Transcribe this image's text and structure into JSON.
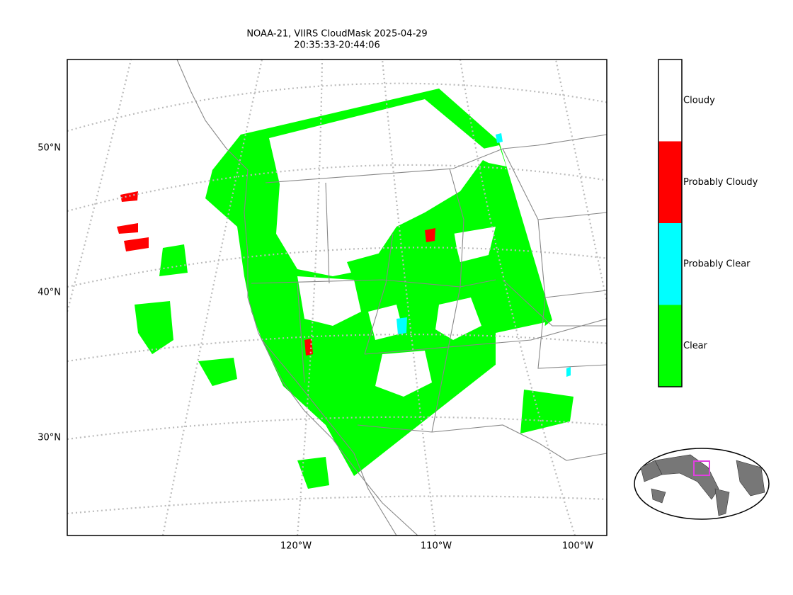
{
  "title": [
    "NOAA-21, VIIRS CloudMask 2025-04-29",
    "20:35:33-20:44:06"
  ],
  "lat_labels": [
    "50°N",
    "40°N",
    "30°N"
  ],
  "lon_labels": [
    "120°W",
    "110°W",
    "100°W"
  ],
  "legend": [
    {
      "label": "Cloudy",
      "color": "#ffffff"
    },
    {
      "label": "Probably Cloudy",
      "color": "#ff0000"
    },
    {
      "label": "Probably Clear",
      "color": "#00ffff"
    },
    {
      "label": "Clear",
      "color": "#00ff00"
    }
  ]
}
